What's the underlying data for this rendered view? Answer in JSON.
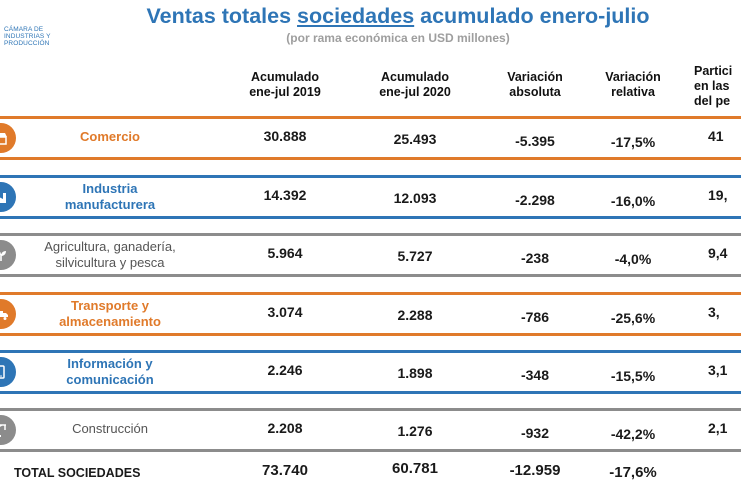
{
  "colors": {
    "title": "#2e75b6",
    "orange": "#e07a2a",
    "blue": "#2e75b6",
    "gray": "#8c8c8c"
  },
  "logo": {
    "line1": "CÁMARA DE",
    "line2": "INDUSTRIAS Y",
    "line3": "PRODUCCIÓN"
  },
  "title": {
    "before": "Ventas totales ",
    "underlined": "sociedades",
    "after": " acumulado enero-julio"
  },
  "subtitle": "(por rama económica en USD millones)",
  "columns": [
    {
      "line1": "Acumulado",
      "line2": "ene-jul 2019"
    },
    {
      "line1": "Acumulado",
      "line2": "ene-jul 2020"
    },
    {
      "line1": "Variación",
      "line2": "absoluta"
    },
    {
      "line1": "Variación",
      "line2": "relativa"
    },
    {
      "line1": "Partici",
      "line2": "en las",
      "line3": "del pe"
    }
  ],
  "rows": [
    {
      "line1": "Comercio",
      "line2": "",
      "icon": "store-icon",
      "color": "orange",
      "v2019": "30.888",
      "v2020": "25.493",
      "abs": "-5.395",
      "rel": "-17,5%",
      "share": "41"
    },
    {
      "line1": "Industria",
      "line2": "manufacturera",
      "icon": "factory-icon",
      "color": "blue",
      "v2019": "14.392",
      "v2020": "12.093",
      "abs": "-2.298",
      "rel": "-16,0%",
      "share": "19,"
    },
    {
      "line1": "Agricultura, ganadería,",
      "line2": "silvicultura y pesca",
      "icon": "plant-icon",
      "color": "gray",
      "v2019": "5.964",
      "v2020": "5.727",
      "abs": "-238",
      "rel": "-4,0%",
      "share": "9,4"
    },
    {
      "line1": "Transporte y",
      "line2": "almacenamiento",
      "icon": "truck-icon",
      "color": "orange",
      "v2019": "3.074",
      "v2020": "2.288",
      "abs": "-786",
      "rel": "-25,6%",
      "share": "3,"
    },
    {
      "line1": "Información y",
      "line2": "comunicación",
      "icon": "phone-icon",
      "color": "blue",
      "v2019": "2.246",
      "v2020": "1.898",
      "abs": "-348",
      "rel": "-15,5%",
      "share": "3,1"
    },
    {
      "line1": "Construcción",
      "line2": "",
      "icon": "crane-icon",
      "color": "gray",
      "v2019": "2.208",
      "v2020": "1.276",
      "abs": "-932",
      "rel": "-42,2%",
      "share": "2,1"
    }
  ],
  "total": {
    "label": "TOTAL SOCIEDADES",
    "v2019": "73.740",
    "v2020": "60.781",
    "abs": "-12.959",
    "rel": "-17,6%"
  }
}
